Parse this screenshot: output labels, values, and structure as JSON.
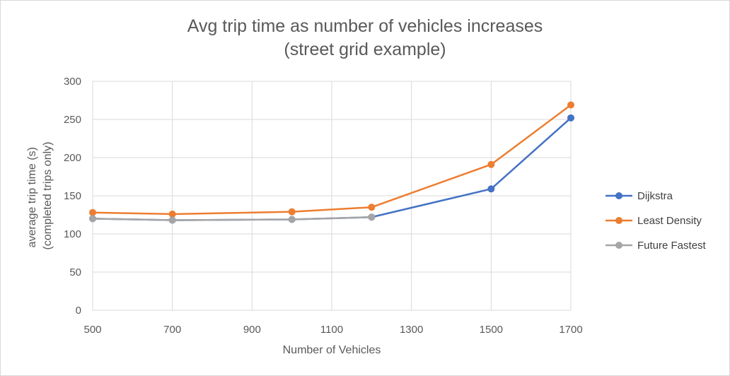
{
  "chart_data": {
    "type": "line",
    "title_line1": "Avg trip time as number of vehicles increases",
    "title_line2": "(street grid example)",
    "xlabel": "Number of Vehicles",
    "ylabel_line1": "average trip time (s)",
    "ylabel_line2": "(completed trips only)",
    "xlim": [
      500,
      1700
    ],
    "ylim": [
      0,
      300
    ],
    "x_ticks": [
      "500",
      "700",
      "900",
      "1100",
      "1300",
      "1500",
      "1700"
    ],
    "y_ticks": [
      "0",
      "50",
      "100",
      "150",
      "200",
      "250",
      "300"
    ],
    "grid": true,
    "legend_position": "right",
    "x": [
      500,
      700,
      1000,
      1200,
      1500,
      1700
    ],
    "series": [
      {
        "name": "Dijkstra",
        "color": "#4472c4",
        "values": [
          120,
          118,
          119,
          122,
          159,
          252
        ]
      },
      {
        "name": "Least Density",
        "color": "#ed7d31",
        "values": [
          128,
          126,
          129,
          135,
          191,
          269
        ]
      },
      {
        "name": "Future Fastest",
        "color": "#a5a5a5",
        "values": [
          120,
          118,
          119,
          122,
          null,
          null
        ]
      }
    ]
  }
}
